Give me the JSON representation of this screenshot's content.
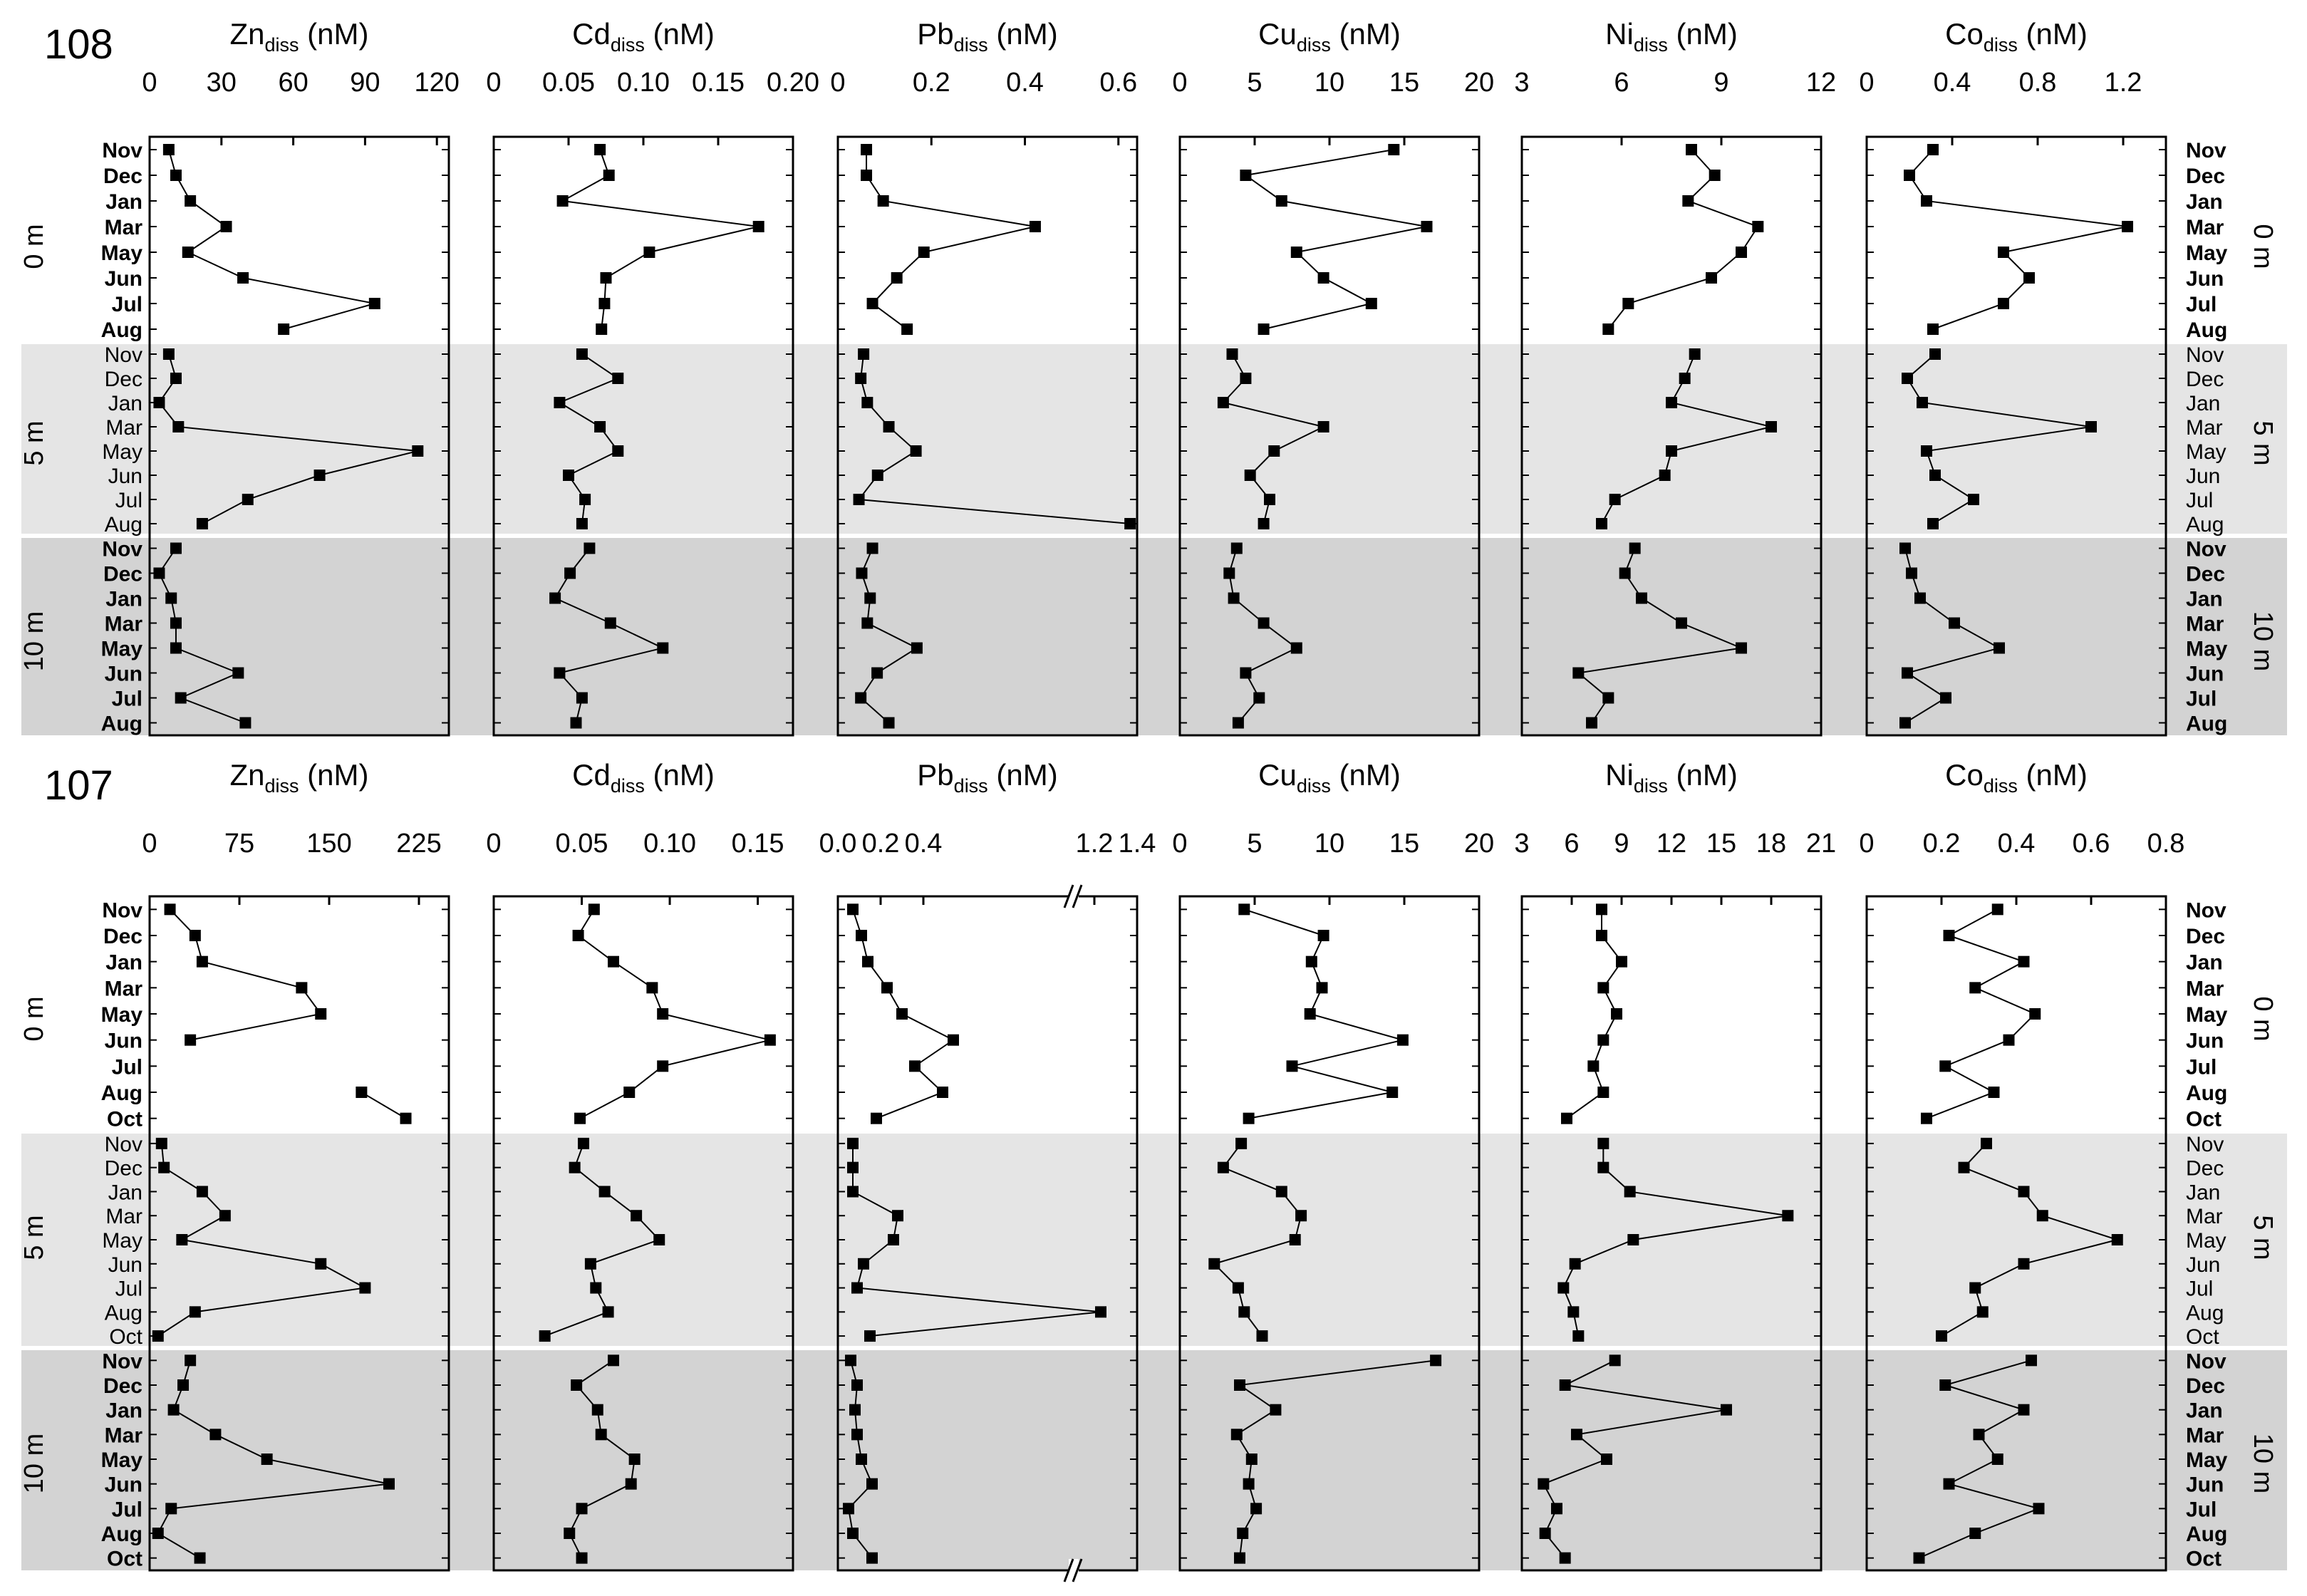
{
  "chart_data": [
    {
      "type": "line",
      "station": "108",
      "depths": [
        "0 m",
        "5 m",
        "10 m"
      ],
      "months": [
        [
          "Nov",
          "Dec",
          "Jan",
          "Mar",
          "May",
          "Jun",
          "Jul",
          "Aug"
        ],
        [
          "Nov",
          "Dec",
          "Jan",
          "Mar",
          "May",
          "Jun",
          "Jul",
          "Aug"
        ],
        [
          "Nov",
          "Dec",
          "Jan",
          "Mar",
          "May",
          "Jun",
          "Jul",
          "Aug"
        ]
      ],
      "panels": [
        {
          "element": "Zn",
          "sub": "diss",
          "unit": " (nM)",
          "xlim": [
            0,
            125
          ],
          "ticks": [
            "0",
            "30",
            "60",
            "90",
            "120"
          ],
          "tickvals": [
            0,
            30,
            60,
            90,
            120
          ],
          "series": [
            [
              8,
              11,
              17,
              32,
              16,
              39,
              94,
              56
            ],
            [
              8,
              11,
              4,
              12,
              112,
              71,
              41,
              22
            ],
            [
              11,
              4,
              9,
              11,
              11,
              37,
              13,
              40
            ]
          ]
        },
        {
          "element": "Cd",
          "sub": "diss",
          "unit": " (nM)",
          "xlim": [
            0,
            0.2
          ],
          "ticks": [
            "0",
            "0.05",
            "0.10",
            "0.15",
            "0.20"
          ],
          "tickvals": [
            0,
            0.05,
            0.1,
            0.15,
            0.2
          ],
          "series": [
            [
              0.071,
              0.077,
              0.046,
              0.177,
              0.104,
              0.075,
              0.074,
              0.072
            ],
            [
              0.059,
              0.083,
              0.044,
              0.071,
              0.083,
              0.05,
              0.061,
              0.059
            ],
            [
              0.064,
              0.051,
              0.041,
              0.078,
              0.113,
              0.044,
              0.059,
              0.055
            ]
          ]
        },
        {
          "element": "Pb",
          "sub": "diss",
          "unit": " (nM)",
          "xlim": [
            0,
            0.64
          ],
          "ticks": [
            "0",
            "0.2",
            "0.4",
            "0.6"
          ],
          "tickvals": [
            0,
            0.2,
            0.4,
            0.6
          ],
          "series": [
            [
              0.061,
              0.061,
              0.097,
              0.422,
              0.184,
              0.126,
              0.074,
              0.148
            ],
            [
              0.055,
              0.049,
              0.063,
              0.109,
              0.167,
              0.085,
              0.045,
              0.625
            ],
            [
              0.074,
              0.051,
              0.069,
              0.063,
              0.169,
              0.084,
              0.049,
              0.109
            ]
          ]
        },
        {
          "element": "Cu",
          "sub": "diss",
          "unit": " (nM)",
          "xlim": [
            0,
            20
          ],
          "ticks": [
            "0",
            "5",
            "10",
            "15",
            "20"
          ],
          "tickvals": [
            0,
            5,
            10,
            15,
            20
          ],
          "series": [
            [
              14.3,
              4.4,
              6.8,
              16.5,
              7.8,
              9.6,
              12.8,
              5.6
            ],
            [
              3.5,
              4.4,
              2.9,
              9.6,
              6.3,
              4.7,
              6.0,
              5.6
            ],
            [
              3.8,
              3.3,
              3.6,
              5.6,
              7.8,
              4.4,
              5.3,
              3.9
            ]
          ]
        },
        {
          "element": "Ni",
          "sub": "diss",
          "unit": " (nM)",
          "xlim": [
            3,
            12
          ],
          "ticks": [
            "3",
            "6",
            "9",
            "12"
          ],
          "tickvals": [
            3,
            6,
            9,
            12
          ],
          "series": [
            [
              8.1,
              8.8,
              8.0,
              10.1,
              9.6,
              8.7,
              6.2,
              5.6
            ],
            [
              8.2,
              7.9,
              7.5,
              10.5,
              7.5,
              7.3,
              5.8,
              5.4
            ],
            [
              6.4,
              6.1,
              6.6,
              7.8,
              9.6,
              4.7,
              5.6,
              5.1
            ]
          ]
        },
        {
          "element": "Co",
          "sub": "diss",
          "unit": " (nM)",
          "xlim": [
            0,
            1.4
          ],
          "ticks": [
            "0",
            "0.4",
            "0.8",
            "1.2"
          ],
          "tickvals": [
            0,
            0.4,
            0.8,
            1.2
          ],
          "series": [
            [
              0.31,
              0.2,
              0.28,
              1.22,
              0.64,
              0.76,
              0.64,
              0.31
            ],
            [
              0.32,
              0.19,
              0.26,
              1.05,
              0.28,
              0.32,
              0.5,
              0.31
            ],
            [
              0.18,
              0.21,
              0.25,
              0.41,
              0.62,
              0.19,
              0.37,
              0.18
            ]
          ]
        }
      ]
    },
    {
      "type": "line",
      "station": "107",
      "depths": [
        "0 m",
        "5 m",
        "10 m"
      ],
      "months": [
        [
          "Nov",
          "Dec",
          "Jan",
          "Mar",
          "May",
          "Jun",
          "Jul",
          "Aug",
          "Oct"
        ],
        [
          "Nov",
          "Dec",
          "Jan",
          "Mar",
          "May",
          "Jun",
          "Jul",
          "Aug",
          "Oct"
        ],
        [
          "Nov",
          "Dec",
          "Jan",
          "Mar",
          "May",
          "Jun",
          "Jul",
          "Aug",
          "Oct"
        ]
      ],
      "panels": [
        {
          "element": "Zn",
          "sub": "diss",
          "unit": " (nM)",
          "xlim": [
            0,
            250
          ],
          "ticks": [
            "0",
            "75",
            "150",
            "225"
          ],
          "tickvals": [
            0,
            75,
            150,
            225
          ],
          "series": [
            [
              17,
              38,
              44,
              127,
              143,
              34,
              null,
              177,
              214
            ],
            [
              10,
              12,
              44,
              63,
              27,
              143,
              180,
              38,
              7
            ],
            [
              34,
              28,
              20,
              55,
              98,
              200,
              18,
              7,
              42
            ]
          ]
        },
        {
          "element": "Cd",
          "sub": "diss",
          "unit": " (nM)",
          "xlim": [
            0,
            0.17
          ],
          "ticks": [
            "0",
            "0.05",
            "0.10",
            "0.15"
          ],
          "tickvals": [
            0,
            0.05,
            0.1,
            0.15
          ],
          "series": [
            [
              0.057,
              0.048,
              0.068,
              0.09,
              0.096,
              0.157,
              0.096,
              0.077,
              0.049
            ],
            [
              0.051,
              0.046,
              0.063,
              0.081,
              0.094,
              0.055,
              0.058,
              0.065,
              0.029
            ],
            [
              0.068,
              0.047,
              0.059,
              0.061,
              0.08,
              0.078,
              0.05,
              0.043,
              0.05
            ]
          ]
        },
        {
          "element": "Pb",
          "sub": "diss",
          "unit": " (nM)",
          "xlim": [
            0,
            1.4
          ],
          "ticks": [
            "0.0",
            "0.2",
            "0.4",
            "1.2",
            "1.4"
          ],
          "tickvals": [
            0,
            0.2,
            0.4,
            1.2,
            1.4
          ],
          "series": [
            [
              0.07,
              0.11,
              0.14,
              0.23,
              0.3,
              0.54,
              0.36,
              0.49,
              0.18
            ],
            [
              0.07,
              0.07,
              0.07,
              0.28,
              0.26,
              0.12,
              0.09,
              1.23,
              0.15
            ],
            [
              0.06,
              0.09,
              0.08,
              0.09,
              0.11,
              0.16,
              0.05,
              0.07,
              0.16
            ]
          ]
        },
        {
          "element": "Cu",
          "sub": "diss",
          "unit": " (nM)",
          "xlim": [
            0,
            20
          ],
          "ticks": [
            "0",
            "5",
            "10",
            "15",
            "20"
          ],
          "tickvals": [
            0,
            5,
            10,
            15,
            20
          ],
          "series": [
            [
              4.3,
              9.6,
              8.8,
              9.5,
              8.7,
              14.9,
              7.5,
              14.2,
              4.6
            ],
            [
              4.1,
              2.9,
              6.8,
              8.1,
              7.7,
              2.3,
              3.9,
              4.3,
              5.5
            ],
            [
              17.1,
              4.0,
              6.4,
              3.8,
              4.8,
              4.6,
              5.1,
              4.2,
              4.0
            ]
          ]
        },
        {
          "element": "Ni",
          "sub": "diss",
          "unit": " (nM)",
          "xlim": [
            3,
            21
          ],
          "ticks": [
            "3",
            "6",
            "9",
            "12",
            "15",
            "18",
            "21"
          ],
          "tickvals": [
            3,
            6,
            9,
            12,
            15,
            18,
            21
          ],
          "series": [
            [
              7.8,
              7.8,
              9.0,
              7.9,
              8.7,
              7.9,
              7.3,
              7.9,
              5.7
            ],
            [
              7.9,
              7.9,
              9.5,
              19.0,
              9.7,
              6.2,
              5.5,
              6.1,
              6.4
            ],
            [
              8.6,
              5.6,
              15.3,
              6.3,
              8.1,
              4.3,
              5.1,
              4.4,
              5.6
            ]
          ]
        },
        {
          "element": "Co",
          "sub": "diss",
          "unit": " (nM)",
          "xlim": [
            0,
            0.8
          ],
          "ticks": [
            "0",
            "0.2",
            "0.4",
            "0.6",
            "0.8"
          ],
          "tickvals": [
            0,
            0.2,
            0.4,
            0.6,
            0.8
          ],
          "series": [
            [
              0.35,
              0.22,
              0.42,
              0.29,
              0.45,
              0.38,
              0.21,
              0.34,
              0.16
            ],
            [
              0.32,
              0.26,
              0.42,
              0.47,
              0.67,
              0.42,
              0.29,
              0.31,
              0.2
            ],
            [
              0.44,
              0.21,
              0.42,
              0.3,
              0.35,
              0.22,
              0.46,
              0.29,
              0.14
            ]
          ]
        }
      ]
    }
  ]
}
